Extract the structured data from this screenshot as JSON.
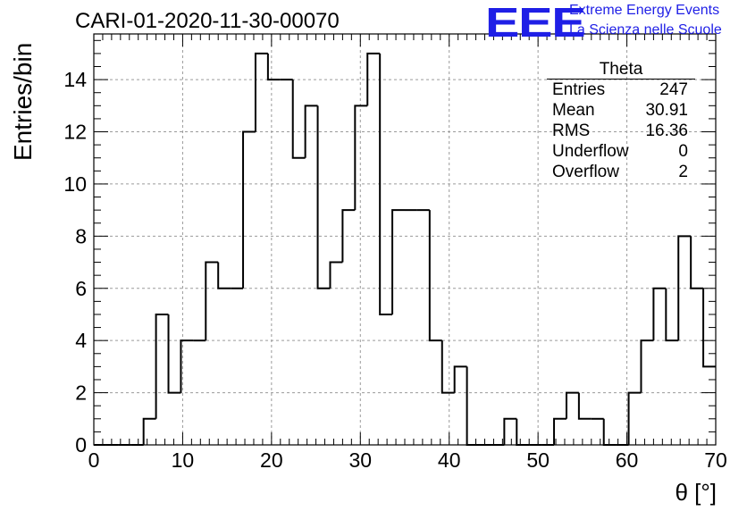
{
  "title": "CARI-01-2020-11-30-00070",
  "logo": {
    "mark": "EEE",
    "line1": "Extreme Energy Events",
    "line2": "La Scienza nelle Scuole",
    "color": "#1f1fe6"
  },
  "chart_data": {
    "type": "bar",
    "histogram": true,
    "xlabel": "θ [°]",
    "ylabel": "Entries/bin",
    "xlim": [
      0,
      70
    ],
    "ylim": [
      0,
      15.75
    ],
    "xticks": [
      0,
      10,
      20,
      30,
      40,
      50,
      60,
      70
    ],
    "yticks": [
      0,
      2,
      4,
      6,
      8,
      10,
      12,
      14
    ],
    "grid": true,
    "bin_width": 1.4,
    "bin_start": 0,
    "values": [
      0,
      0,
      0,
      0,
      1,
      5,
      2,
      4,
      4,
      7,
      6,
      6,
      12,
      15,
      14,
      14,
      11,
      13,
      6,
      7,
      9,
      13,
      15,
      5,
      9,
      9,
      9,
      4,
      2,
      3,
      0,
      0,
      0,
      1,
      0,
      0,
      0,
      1,
      2,
      1,
      1,
      0,
      0,
      2,
      4,
      6,
      4,
      8,
      6,
      3
    ],
    "stats": {
      "name": "Theta",
      "rows": [
        {
          "label": "Entries",
          "value": "247"
        },
        {
          "label": "Mean",
          "value": "30.91"
        },
        {
          "label": "RMS",
          "value": "16.36"
        },
        {
          "label": "Underflow",
          "value": "0"
        },
        {
          "label": "Overflow",
          "value": "2"
        }
      ]
    }
  }
}
